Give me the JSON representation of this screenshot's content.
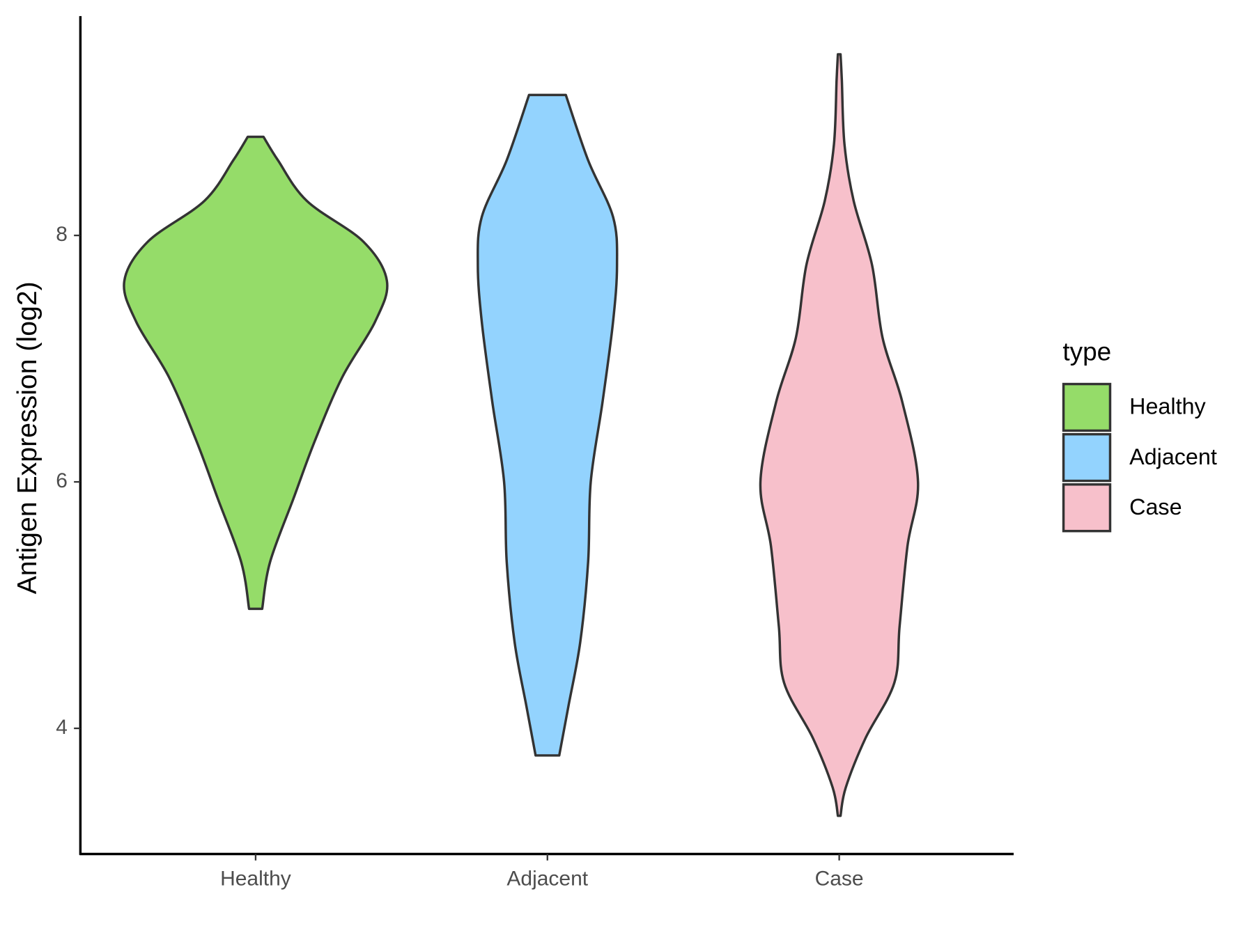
{
  "chart_data": {
    "type": "violin",
    "y_label": "Antigen Expression (log2)",
    "categories": [
      "Healthy",
      "Adjacent",
      "Case"
    ],
    "legend_title": "type",
    "legend_position": "right",
    "ylim": [
      2.98,
      9.78
    ],
    "yticks": [
      4,
      6,
      8
    ],
    "series": [
      {
        "name": "Healthy",
        "color": "#95dc69",
        "y": [
          4.97,
          5.35,
          5.87,
          6.33,
          6.85,
          7.3,
          7.63,
          7.95,
          8.28,
          8.61,
          8.8
        ],
        "width": [
          0.05,
          0.11,
          0.29,
          0.45,
          0.66,
          0.91,
          1.0,
          0.82,
          0.39,
          0.17,
          0.06
        ]
      },
      {
        "name": "Adjacent",
        "color": "#93d3fe",
        "y": [
          3.78,
          4.18,
          4.7,
          5.35,
          6.0,
          6.65,
          7.3,
          7.76,
          8.15,
          8.61,
          9.14
        ],
        "width": [
          0.09,
          0.16,
          0.25,
          0.31,
          0.33,
          0.42,
          0.5,
          0.53,
          0.5,
          0.31,
          0.14
        ]
      },
      {
        "name": "Case",
        "color": "#f7c0cb",
        "y": [
          3.29,
          3.52,
          3.92,
          4.37,
          4.83,
          5.48,
          6.0,
          6.65,
          7.17,
          7.76,
          8.28,
          8.74,
          9.26,
          9.47
        ],
        "width": [
          0.01,
          0.05,
          0.2,
          0.42,
          0.46,
          0.52,
          0.6,
          0.48,
          0.33,
          0.25,
          0.11,
          0.04,
          0.02,
          0.01
        ]
      }
    ]
  }
}
